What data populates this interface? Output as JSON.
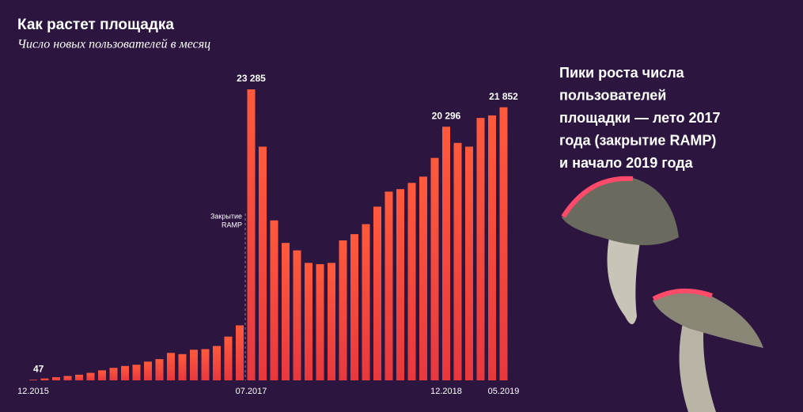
{
  "chart_data": {
    "type": "bar",
    "title": "Как растет площадка",
    "subtitle": "Число новых пользователей в месяц",
    "categories": [
      "12.2015",
      null,
      null,
      null,
      null,
      null,
      null,
      null,
      null,
      null,
      null,
      null,
      null,
      null,
      null,
      null,
      null,
      null,
      null,
      "07.2017",
      null,
      null,
      null,
      null,
      null,
      null,
      null,
      null,
      null,
      null,
      null,
      null,
      null,
      null,
      null,
      null,
      "12.2018",
      null,
      null,
      null,
      null,
      "05.2019"
    ],
    "values": [
      47,
      150,
      250,
      350,
      450,
      600,
      800,
      1000,
      1150,
      1250,
      1500,
      1700,
      2200,
      2100,
      2450,
      2500,
      2750,
      3500,
      4400,
      23285,
      18700,
      12800,
      11000,
      10400,
      9400,
      9300,
      9400,
      11200,
      11700,
      12500,
      13900,
      15100,
      15300,
      15800,
      16300,
      17800,
      20296,
      19000,
      18700,
      21000,
      21200,
      21852
    ],
    "value_labels": [
      "47",
      null,
      null,
      null,
      null,
      null,
      null,
      null,
      null,
      null,
      null,
      null,
      null,
      null,
      null,
      null,
      null,
      null,
      null,
      "23 285",
      null,
      null,
      null,
      null,
      null,
      null,
      null,
      null,
      null,
      null,
      null,
      null,
      null,
      null,
      null,
      null,
      "20 296",
      null,
      null,
      null,
      null,
      "21 852"
    ],
    "color": "#f04a3a",
    "annotation": [
      "Закрытие",
      "RAMP"
    ],
    "side_text": [
      "Пики роста числа",
      "пользователей",
      "площадки — лето 2017",
      "года (закрытие RAMP)",
      "и начало 2019 года"
    ]
  }
}
